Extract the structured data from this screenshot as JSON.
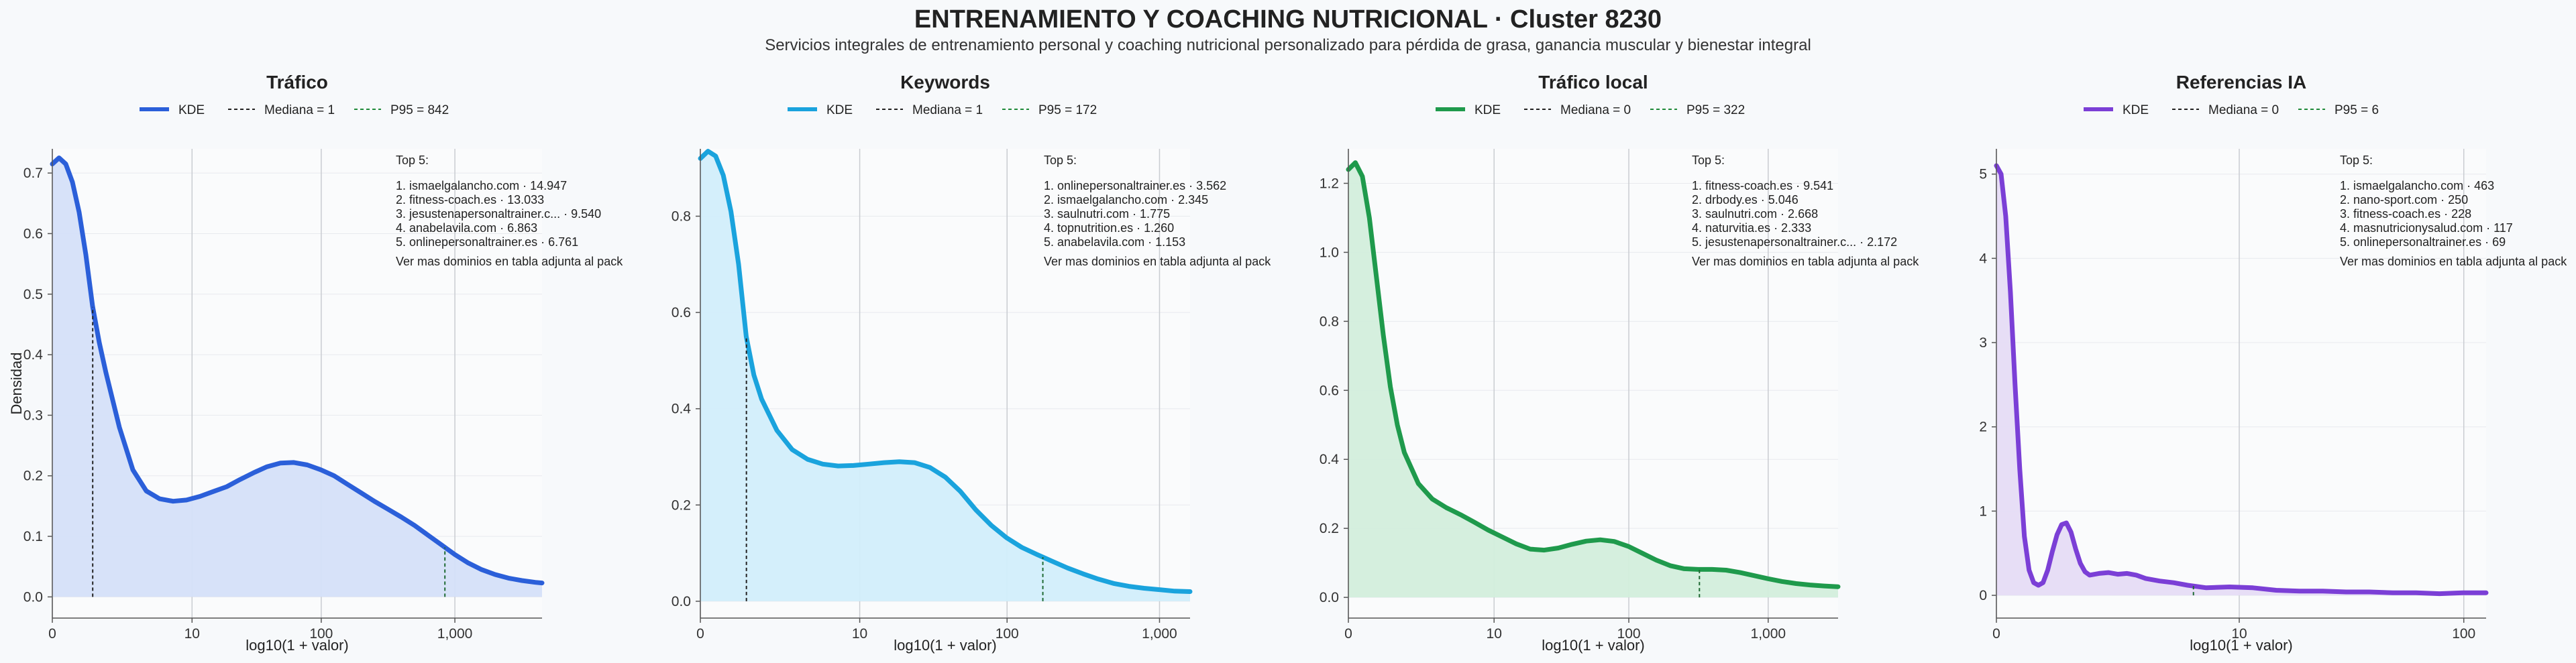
{
  "page": {
    "title": "ENTRENAMIENTO Y COACHING NUTRICIONAL · Cluster 8230",
    "subtitle": "Servicios integrales de entrenamiento personal y coaching nutricional personalizado para pérdida de grasa, ganancia muscular y bienestar integral"
  },
  "legend_labels": {
    "kde": "KDE"
  },
  "chart_data": [
    {
      "type": "area",
      "title": "Tráfico",
      "xlabel": "log10(1 + valor)",
      "ylabel": "Densidad",
      "color": "#2b5fd9",
      "fill": "#d5e0f9",
      "xlim": [
        0,
        3.65
      ],
      "ylim": [
        -0.035,
        0.74
      ],
      "yticks": [
        0.0,
        0.1,
        0.2,
        0.3,
        0.4,
        0.5,
        0.6,
        0.7
      ],
      "xticks": [
        {
          "v": 0,
          "label": "0"
        },
        {
          "v": 1.0414,
          "label": "10"
        },
        {
          "v": 2.0043,
          "label": "100"
        },
        {
          "v": 3.0004,
          "label": "1,000"
        }
      ],
      "median": {
        "x": 0.301,
        "label": "Mediana = 1"
      },
      "p95": {
        "x": 2.926,
        "label": "P95 = 842"
      },
      "curve": [
        [
          0,
          0.715
        ],
        [
          0.05,
          0.725
        ],
        [
          0.1,
          0.715
        ],
        [
          0.15,
          0.685
        ],
        [
          0.2,
          0.635
        ],
        [
          0.25,
          0.565
        ],
        [
          0.3,
          0.48
        ],
        [
          0.35,
          0.42
        ],
        [
          0.4,
          0.37
        ],
        [
          0.5,
          0.28
        ],
        [
          0.6,
          0.21
        ],
        [
          0.7,
          0.175
        ],
        [
          0.8,
          0.162
        ],
        [
          0.9,
          0.158
        ],
        [
          1.0,
          0.16
        ],
        [
          1.1,
          0.166
        ],
        [
          1.2,
          0.174
        ],
        [
          1.3,
          0.182
        ],
        [
          1.4,
          0.194
        ],
        [
          1.5,
          0.205
        ],
        [
          1.6,
          0.215
        ],
        [
          1.7,
          0.221
        ],
        [
          1.8,
          0.222
        ],
        [
          1.9,
          0.218
        ],
        [
          2.0,
          0.21
        ],
        [
          2.1,
          0.2
        ],
        [
          2.2,
          0.186
        ],
        [
          2.3,
          0.172
        ],
        [
          2.4,
          0.158
        ],
        [
          2.5,
          0.145
        ],
        [
          2.6,
          0.132
        ],
        [
          2.7,
          0.118
        ],
        [
          2.8,
          0.102
        ],
        [
          2.9,
          0.086
        ],
        [
          3.0,
          0.07
        ],
        [
          3.1,
          0.056
        ],
        [
          3.2,
          0.045
        ],
        [
          3.3,
          0.037
        ],
        [
          3.4,
          0.031
        ],
        [
          3.5,
          0.027
        ],
        [
          3.6,
          0.024
        ],
        [
          3.65,
          0.023
        ]
      ],
      "top": {
        "heading": "Top 5:",
        "items": [
          "1. ismaelgalancho.com · 14.947",
          "2. fitness-coach.es · 13.033",
          "3. jesustenapersonaltrainer.c... · 9.540",
          "4. anabelavila.com · 6.863",
          "5. onlinepersonaltrainer.es · 6.761"
        ],
        "note": "Ver mas dominios en tabla adjunta al pack"
      }
    },
    {
      "type": "area",
      "title": "Keywords",
      "xlabel": "log10(1 + valor)",
      "ylabel": "",
      "color": "#1aa3dd",
      "fill": "#d2eefb",
      "xlim": [
        0,
        3.2
      ],
      "ylim": [
        -0.035,
        0.94
      ],
      "yticks": [
        0.0,
        0.2,
        0.4,
        0.6,
        0.8
      ],
      "xticks": [
        {
          "v": 0,
          "label": "0"
        },
        {
          "v": 1.0414,
          "label": "10"
        },
        {
          "v": 2.0043,
          "label": "100"
        },
        {
          "v": 3.0004,
          "label": "1,000"
        }
      ],
      "median": {
        "x": 0.301,
        "label": "Mediana = 1"
      },
      "p95": {
        "x": 2.238,
        "label": "P95 = 172"
      },
      "curve": [
        [
          0,
          0.92
        ],
        [
          0.05,
          0.935
        ],
        [
          0.1,
          0.925
        ],
        [
          0.15,
          0.885
        ],
        [
          0.2,
          0.81
        ],
        [
          0.25,
          0.7
        ],
        [
          0.3,
          0.55
        ],
        [
          0.35,
          0.47
        ],
        [
          0.4,
          0.42
        ],
        [
          0.5,
          0.355
        ],
        [
          0.6,
          0.315
        ],
        [
          0.7,
          0.295
        ],
        [
          0.8,
          0.285
        ],
        [
          0.9,
          0.281
        ],
        [
          1.0,
          0.282
        ],
        [
          1.1,
          0.285
        ],
        [
          1.2,
          0.288
        ],
        [
          1.3,
          0.29
        ],
        [
          1.4,
          0.288
        ],
        [
          1.5,
          0.278
        ],
        [
          1.6,
          0.258
        ],
        [
          1.7,
          0.228
        ],
        [
          1.8,
          0.19
        ],
        [
          1.9,
          0.158
        ],
        [
          2.0,
          0.132
        ],
        [
          2.1,
          0.112
        ],
        [
          2.2,
          0.097
        ],
        [
          2.3,
          0.083
        ],
        [
          2.4,
          0.069
        ],
        [
          2.5,
          0.057
        ],
        [
          2.6,
          0.046
        ],
        [
          2.7,
          0.037
        ],
        [
          2.8,
          0.031
        ],
        [
          2.9,
          0.027
        ],
        [
          3.0,
          0.024
        ],
        [
          3.1,
          0.021
        ],
        [
          3.2,
          0.02
        ]
      ],
      "top": {
        "heading": "Top 5:",
        "items": [
          "1. onlinepersonaltrainer.es · 3.562",
          "2. ismaelgalancho.com · 2.345",
          "3. saulnutri.com · 1.775",
          "4. topnutrition.es · 1.260",
          "5. anabelavila.com · 1.153"
        ],
        "note": "Ver mas dominios en tabla adjunta al pack"
      }
    },
    {
      "type": "area",
      "title": "Tráfico local",
      "xlabel": "log10(1 + valor)",
      "ylabel": "",
      "color": "#1f9a4c",
      "fill": "#d3eedc",
      "xlim": [
        0,
        3.5
      ],
      "ylim": [
        -0.06,
        1.3
      ],
      "yticks": [
        0.0,
        0.2,
        0.4,
        0.6,
        0.8,
        1.0,
        1.2
      ],
      "xticks": [
        {
          "v": 0,
          "label": "0"
        },
        {
          "v": 1.0414,
          "label": "10"
        },
        {
          "v": 2.0043,
          "label": "100"
        },
        {
          "v": 3.0004,
          "label": "1,000"
        }
      ],
      "median": {
        "x": 0,
        "label": "Mediana = 0"
      },
      "p95": {
        "x": 2.509,
        "label": "P95 = 322"
      },
      "curve": [
        [
          0,
          1.24
        ],
        [
          0.05,
          1.26
        ],
        [
          0.1,
          1.22
        ],
        [
          0.15,
          1.1
        ],
        [
          0.2,
          0.93
        ],
        [
          0.25,
          0.76
        ],
        [
          0.3,
          0.61
        ],
        [
          0.35,
          0.5
        ],
        [
          0.4,
          0.42
        ],
        [
          0.5,
          0.33
        ],
        [
          0.6,
          0.285
        ],
        [
          0.7,
          0.26
        ],
        [
          0.8,
          0.24
        ],
        [
          0.9,
          0.218
        ],
        [
          1.0,
          0.195
        ],
        [
          1.1,
          0.175
        ],
        [
          1.2,
          0.155
        ],
        [
          1.3,
          0.14
        ],
        [
          1.4,
          0.137
        ],
        [
          1.5,
          0.143
        ],
        [
          1.6,
          0.154
        ],
        [
          1.7,
          0.163
        ],
        [
          1.8,
          0.167
        ],
        [
          1.9,
          0.162
        ],
        [
          2.0,
          0.148
        ],
        [
          2.1,
          0.128
        ],
        [
          2.2,
          0.108
        ],
        [
          2.3,
          0.092
        ],
        [
          2.4,
          0.083
        ],
        [
          2.5,
          0.081
        ],
        [
          2.6,
          0.081
        ],
        [
          2.7,
          0.079
        ],
        [
          2.8,
          0.072
        ],
        [
          2.9,
          0.063
        ],
        [
          3.0,
          0.054
        ],
        [
          3.1,
          0.046
        ],
        [
          3.2,
          0.04
        ],
        [
          3.3,
          0.036
        ],
        [
          3.4,
          0.033
        ],
        [
          3.5,
          0.031
        ]
      ],
      "top": {
        "heading": "Top 5:",
        "items": [
          "1. fitness-coach.es · 9.541",
          "2. drbody.es · 5.046",
          "3. saulnutri.com · 2.668",
          "4. naturvitia.es · 2.333",
          "5. jesustenapersonaltrainer.c... · 2.172"
        ],
        "note": "Ver mas dominios en tabla adjunta al pack"
      }
    },
    {
      "type": "area",
      "title": "Referencias IA",
      "xlabel": "log10(1 + valor)",
      "ylabel": "",
      "color": "#7b3fd6",
      "fill": "#e6dcf6",
      "xlim": [
        0,
        2.1
      ],
      "ylim": [
        -0.27,
        5.3
      ],
      "yticks": [
        0,
        1,
        2,
        3,
        4,
        5
      ],
      "xticks": [
        {
          "v": 0,
          "label": "0"
        },
        {
          "v": 1.0414,
          "label": "10"
        },
        {
          "v": 2.0043,
          "label": "100"
        }
      ],
      "median": {
        "x": 0,
        "label": "Mediana = 0"
      },
      "p95": {
        "x": 0.845,
        "label": "P95 = 6"
      },
      "curve": [
        [
          0,
          5.1
        ],
        [
          0.02,
          5.0
        ],
        [
          0.04,
          4.5
        ],
        [
          0.06,
          3.6
        ],
        [
          0.08,
          2.5
        ],
        [
          0.1,
          1.5
        ],
        [
          0.12,
          0.7
        ],
        [
          0.14,
          0.3
        ],
        [
          0.16,
          0.15
        ],
        [
          0.18,
          0.12
        ],
        [
          0.2,
          0.15
        ],
        [
          0.22,
          0.3
        ],
        [
          0.24,
          0.52
        ],
        [
          0.26,
          0.72
        ],
        [
          0.28,
          0.84
        ],
        [
          0.3,
          0.86
        ],
        [
          0.32,
          0.75
        ],
        [
          0.34,
          0.55
        ],
        [
          0.36,
          0.38
        ],
        [
          0.38,
          0.28
        ],
        [
          0.4,
          0.24
        ],
        [
          0.44,
          0.26
        ],
        [
          0.48,
          0.27
        ],
        [
          0.52,
          0.25
        ],
        [
          0.56,
          0.26
        ],
        [
          0.6,
          0.24
        ],
        [
          0.64,
          0.2
        ],
        [
          0.7,
          0.17
        ],
        [
          0.76,
          0.15
        ],
        [
          0.82,
          0.12
        ],
        [
          0.9,
          0.09
        ],
        [
          1.0,
          0.1
        ],
        [
          1.1,
          0.09
        ],
        [
          1.2,
          0.06
        ],
        [
          1.3,
          0.05
        ],
        [
          1.4,
          0.05
        ],
        [
          1.5,
          0.04
        ],
        [
          1.6,
          0.04
        ],
        [
          1.7,
          0.03
        ],
        [
          1.8,
          0.03
        ],
        [
          1.9,
          0.02
        ],
        [
          2.0,
          0.03
        ],
        [
          2.1,
          0.03
        ]
      ],
      "top": {
        "heading": "Top 5:",
        "items": [
          "1. ismaelgalancho.com · 463",
          "2. nano-sport.com · 250",
          "3. fitness-coach.es · 228",
          "4. masnutricionysalud.com · 117",
          "5. onlinepersonaltrainer.es · 69"
        ],
        "note": "Ver mas dominios en tabla adjunta al pack"
      }
    }
  ]
}
